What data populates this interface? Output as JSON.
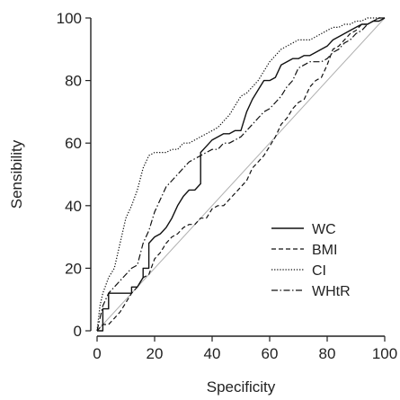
{
  "chart_data": {
    "type": "line",
    "title": "",
    "xlabel": "Specificity",
    "ylabel": "Sensibility",
    "xlim": [
      0,
      100
    ],
    "ylim": [
      0,
      100
    ],
    "xticks": [
      0,
      20,
      40,
      60,
      80,
      100
    ],
    "yticks": [
      0,
      20,
      40,
      60,
      80,
      100
    ],
    "grid": false,
    "legend_position": "bottom-right",
    "reference_line": {
      "x": [
        0,
        100
      ],
      "y": [
        0,
        100
      ],
      "color": "#b0b0b0"
    },
    "series": [
      {
        "name": "WC",
        "style": "solid",
        "color": "#111111",
        "x": [
          0,
          2,
          2,
          4,
          4,
          12,
          12,
          14,
          16,
          16,
          18,
          18,
          20,
          22,
          24,
          26,
          28,
          30,
          32,
          34,
          36,
          36,
          38,
          40,
          42,
          44,
          46,
          48,
          50,
          52,
          54,
          56,
          58,
          60,
          62,
          64,
          66,
          68,
          70,
          72,
          74,
          76,
          78,
          80,
          82,
          84,
          86,
          88,
          90,
          92,
          94,
          96,
          98,
          100
        ],
        "y": [
          0,
          0,
          7,
          7,
          12,
          12,
          14,
          14,
          17,
          20,
          20,
          28,
          30,
          31,
          33,
          36,
          40,
          43,
          45,
          45,
          47,
          57,
          59,
          61,
          62,
          63,
          63,
          64,
          64,
          70,
          74,
          77,
          80,
          80,
          81,
          85,
          86,
          87,
          87,
          88,
          88,
          89,
          90,
          91,
          93,
          94,
          95,
          96,
          97,
          98,
          98,
          99,
          99,
          100
        ]
      },
      {
        "name": "BMI",
        "style": "dashed",
        "color": "#111111",
        "x": [
          0,
          2,
          4,
          6,
          8,
          10,
          12,
          14,
          16,
          18,
          20,
          22,
          24,
          26,
          28,
          30,
          32,
          34,
          36,
          38,
          40,
          42,
          44,
          46,
          48,
          50,
          52,
          54,
          56,
          58,
          60,
          62,
          64,
          66,
          68,
          70,
          72,
          74,
          76,
          78,
          80,
          82,
          84,
          86,
          88,
          90,
          92,
          94,
          96,
          98,
          100
        ],
        "y": [
          0,
          2,
          2,
          4,
          6,
          9,
          12,
          14,
          17,
          18,
          23,
          25,
          28,
          30,
          31,
          33,
          34,
          34,
          36,
          36,
          39,
          40,
          40,
          42,
          44,
          46,
          48,
          52,
          54,
          56,
          59,
          62,
          66,
          68,
          71,
          73,
          74,
          78,
          80,
          81,
          85,
          90,
          91,
          93,
          95,
          96,
          98,
          98,
          99,
          100,
          100
        ]
      },
      {
        "name": "CI",
        "style": "dotted",
        "color": "#111111",
        "x": [
          0,
          1,
          2,
          4,
          6,
          8,
          10,
          12,
          14,
          16,
          18,
          20,
          22,
          24,
          26,
          28,
          30,
          32,
          34,
          36,
          38,
          40,
          42,
          44,
          46,
          48,
          50,
          52,
          54,
          56,
          58,
          60,
          62,
          64,
          66,
          68,
          70,
          72,
          74,
          76,
          78,
          80,
          82,
          84,
          86,
          88,
          90,
          92,
          94,
          96,
          98,
          100
        ],
        "y": [
          0,
          8,
          12,
          17,
          20,
          28,
          36,
          40,
          45,
          52,
          56,
          57,
          57,
          57,
          58,
          58,
          60,
          60,
          61,
          62,
          63,
          64,
          65,
          67,
          69,
          72,
          75,
          76,
          78,
          80,
          83,
          86,
          88,
          90,
          91,
          92,
          93,
          93,
          93,
          94,
          95,
          96,
          97,
          97,
          98,
          98,
          99,
          99,
          100,
          100,
          100,
          100
        ]
      },
      {
        "name": "WHtR",
        "style": "dashdot",
        "color": "#111111",
        "x": [
          0,
          2,
          4,
          6,
          8,
          10,
          12,
          14,
          16,
          18,
          20,
          22,
          24,
          26,
          28,
          30,
          32,
          34,
          36,
          38,
          40,
          42,
          44,
          46,
          48,
          50,
          52,
          54,
          56,
          58,
          60,
          62,
          64,
          66,
          68,
          70,
          72,
          74,
          76,
          78,
          80,
          82,
          84,
          86,
          88,
          90,
          92,
          94,
          96,
          98,
          100
        ],
        "y": [
          0,
          8,
          12,
          14,
          16,
          18,
          20,
          21,
          28,
          32,
          38,
          42,
          46,
          48,
          50,
          52,
          54,
          55,
          56,
          57,
          58,
          58,
          60,
          60,
          61,
          62,
          64,
          66,
          68,
          70,
          71,
          73,
          75,
          78,
          80,
          84,
          85,
          86,
          86,
          86,
          87,
          89,
          90,
          92,
          93,
          95,
          96,
          98,
          99,
          100,
          100
        ]
      }
    ]
  }
}
